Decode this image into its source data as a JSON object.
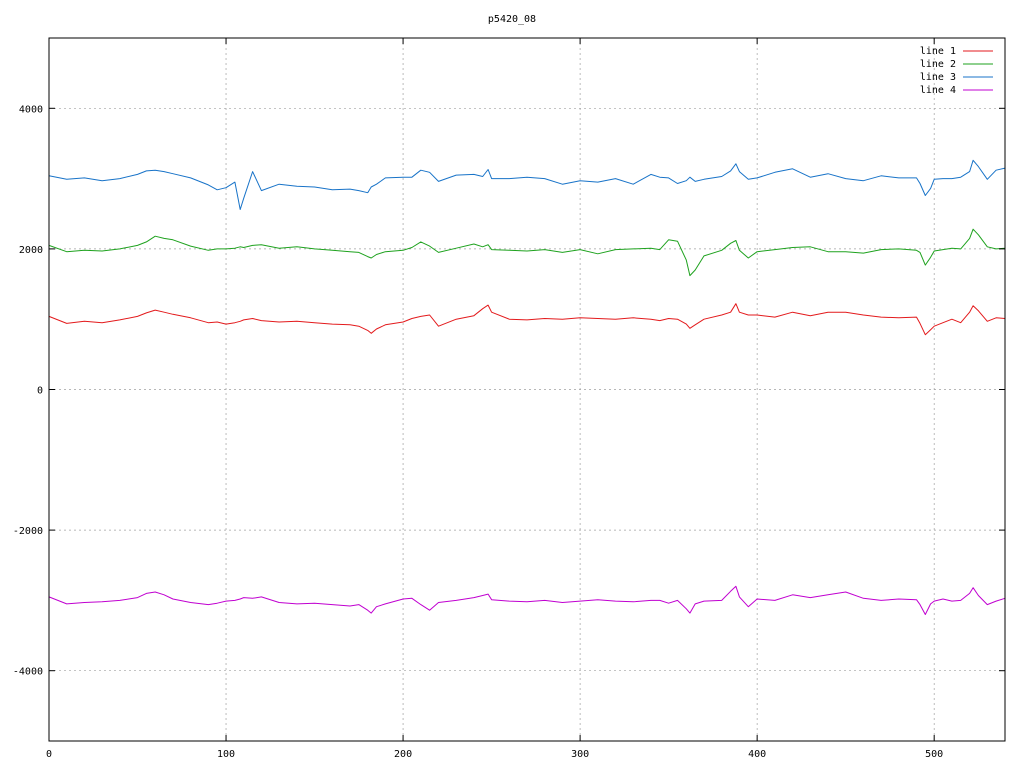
{
  "chart_data": {
    "type": "line",
    "title": "p5420_08",
    "xlim": [
      0,
      540
    ],
    "ylim": [
      -5000,
      5000
    ],
    "x_ticks": [
      0,
      100,
      200,
      300,
      400,
      500
    ],
    "y_ticks": [
      -4000,
      -2000,
      0,
      2000,
      4000
    ],
    "x_tick_labels": [
      "0",
      "100",
      "200",
      "300",
      "400",
      "500"
    ],
    "y_tick_labels": [
      "-4000",
      "-2000",
      "0",
      "2000",
      "4000"
    ],
    "grid": true,
    "legend_position": "top-right",
    "x": [
      0,
      10,
      20,
      30,
      40,
      50,
      55,
      60,
      65,
      70,
      80,
      90,
      95,
      100,
      105,
      108,
      110,
      115,
      120,
      130,
      140,
      150,
      160,
      170,
      175,
      180,
      182,
      185,
      190,
      200,
      205,
      210,
      215,
      220,
      230,
      240,
      245,
      248,
      250,
      260,
      270,
      280,
      290,
      300,
      310,
      320,
      330,
      340,
      345,
      350,
      355,
      360,
      362,
      365,
      370,
      380,
      385,
      388,
      390,
      395,
      400,
      410,
      420,
      430,
      440,
      450,
      460,
      470,
      480,
      490,
      492,
      495,
      498,
      500,
      505,
      510,
      515,
      520,
      522,
      525,
      530,
      535,
      540
    ],
    "series": [
      {
        "name": "line 1",
        "color": "#e31a1c",
        "values": [
          1040,
          940,
          970,
          950,
          990,
          1040,
          1090,
          1130,
          1100,
          1070,
          1020,
          950,
          960,
          930,
          950,
          970,
          990,
          1010,
          980,
          960,
          970,
          950,
          930,
          920,
          900,
          840,
          800,
          860,
          920,
          960,
          1010,
          1040,
          1060,
          900,
          1000,
          1050,
          1150,
          1200,
          1100,
          1000,
          990,
          1010,
          1000,
          1020,
          1010,
          1000,
          1020,
          1000,
          980,
          1010,
          1000,
          930,
          870,
          920,
          1000,
          1060,
          1100,
          1220,
          1100,
          1060,
          1060,
          1030,
          1100,
          1050,
          1100,
          1100,
          1060,
          1030,
          1020,
          1030,
          940,
          780,
          850,
          900,
          950,
          1000,
          950,
          1100,
          1190,
          1120,
          970,
          1020,
          1010
        ]
      },
      {
        "name": "line 2",
        "color": "#1ea21e",
        "values": [
          2050,
          1960,
          1980,
          1970,
          2000,
          2050,
          2100,
          2180,
          2150,
          2130,
          2040,
          1980,
          2000,
          2000,
          2010,
          2030,
          2020,
          2050,
          2060,
          2010,
          2030,
          2000,
          1980,
          1960,
          1950,
          1890,
          1870,
          1920,
          1960,
          1980,
          2020,
          2100,
          2040,
          1950,
          2010,
          2070,
          2030,
          2060,
          1990,
          1980,
          1970,
          1990,
          1950,
          1990,
          1930,
          1990,
          2000,
          2010,
          1990,
          2130,
          2110,
          1840,
          1620,
          1700,
          1900,
          1980,
          2080,
          2120,
          1980,
          1870,
          1960,
          1990,
          2020,
          2030,
          1960,
          1960,
          1940,
          1990,
          2000,
          1980,
          1950,
          1770,
          1880,
          1970,
          1990,
          2010,
          2000,
          2150,
          2280,
          2200,
          2030,
          2000,
          2010
        ]
      },
      {
        "name": "line 3",
        "color": "#1873c8",
        "values": [
          3040,
          2990,
          3010,
          2970,
          3000,
          3060,
          3110,
          3120,
          3100,
          3070,
          3010,
          2910,
          2840,
          2870,
          2950,
          2560,
          2720,
          3100,
          2830,
          2920,
          2890,
          2880,
          2840,
          2850,
          2830,
          2800,
          2880,
          2920,
          3010,
          3020,
          3020,
          3120,
          3090,
          2960,
          3050,
          3060,
          3030,
          3130,
          3000,
          3000,
          3020,
          3000,
          2920,
          2970,
          2950,
          3000,
          2920,
          3060,
          3020,
          3010,
          2930,
          2970,
          3020,
          2960,
          2990,
          3030,
          3110,
          3210,
          3100,
          2990,
          3010,
          3090,
          3140,
          3020,
          3070,
          3000,
          2970,
          3040,
          3010,
          3010,
          2930,
          2760,
          2860,
          2990,
          3000,
          3000,
          3020,
          3100,
          3260,
          3170,
          2990,
          3120,
          3150
        ]
      },
      {
        "name": "line 4",
        "color": "#c000d0",
        "values": [
          -2950,
          -3050,
          -3030,
          -3020,
          -3000,
          -2960,
          -2900,
          -2880,
          -2920,
          -2980,
          -3030,
          -3060,
          -3040,
          -3010,
          -3000,
          -2980,
          -2960,
          -2970,
          -2950,
          -3030,
          -3050,
          -3040,
          -3060,
          -3080,
          -3060,
          -3140,
          -3180,
          -3090,
          -3050,
          -2980,
          -2970,
          -3060,
          -3140,
          -3030,
          -3000,
          -2960,
          -2930,
          -2910,
          -2990,
          -3010,
          -3020,
          -3000,
          -3030,
          -3010,
          -2990,
          -3010,
          -3020,
          -3000,
          -3000,
          -3040,
          -3000,
          -3120,
          -3180,
          -3050,
          -3010,
          -3000,
          -2870,
          -2800,
          -2950,
          -3090,
          -2980,
          -3000,
          -2920,
          -2960,
          -2920,
          -2880,
          -2970,
          -3000,
          -2980,
          -2990,
          -3060,
          -3200,
          -3050,
          -3010,
          -2980,
          -3010,
          -3000,
          -2900,
          -2820,
          -2930,
          -3060,
          -3010,
          -2970
        ]
      }
    ]
  }
}
